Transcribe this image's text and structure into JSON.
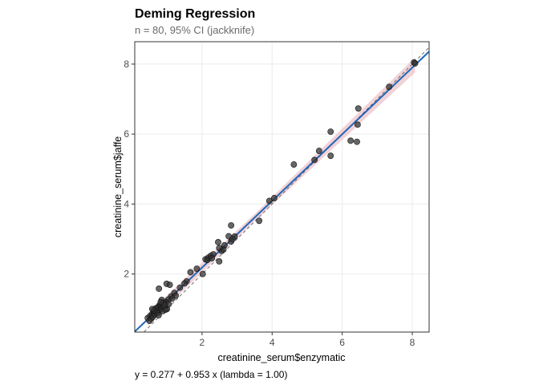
{
  "chart_data": {
    "type": "scatter",
    "title": "Deming Regression",
    "subtitle": "n = 80, 95% CI (jackknife)",
    "xlabel": "creatinine_serum$enzymatic",
    "ylabel": "creatinine_serum$jaffe",
    "caption": "y = 0.277 + 0.953 x  (lambda = 1.00)",
    "xlim": [
      0.08,
      8.48
    ],
    "ylim": [
      0.34,
      8.64
    ],
    "xticks": [
      2,
      4,
      6,
      8
    ],
    "yticks": [
      2,
      4,
      6,
      8
    ],
    "grid": true,
    "regression": {
      "intercept": 0.277,
      "slope": 0.953,
      "color": "#1f66b8"
    },
    "ci_band_color": "#e8b4bc",
    "identity_line": {
      "style": "dashed",
      "color": "#555555"
    },
    "point_color": "#333333",
    "points": [
      [
        8.05,
        8.05
      ],
      [
        8.08,
        8.02
      ],
      [
        7.34,
        7.35
      ],
      [
        6.46,
        6.73
      ],
      [
        6.44,
        6.27
      ],
      [
        6.24,
        5.81
      ],
      [
        6.42,
        5.78
      ],
      [
        5.67,
        6.07
      ],
      [
        5.67,
        5.38
      ],
      [
        5.34,
        5.52
      ],
      [
        5.21,
        5.26
      ],
      [
        4.62,
        5.13
      ],
      [
        3.92,
        4.09
      ],
      [
        4.06,
        4.17
      ],
      [
        3.63,
        3.52
      ],
      [
        2.83,
        3.39
      ],
      [
        2.76,
        3.08
      ],
      [
        2.93,
        3.07
      ],
      [
        2.83,
        2.93
      ],
      [
        2.87,
        3.0
      ],
      [
        2.64,
        2.82
      ],
      [
        2.56,
        2.66
      ],
      [
        2.61,
        2.7
      ],
      [
        2.49,
        2.74
      ],
      [
        2.46,
        2.91
      ],
      [
        2.1,
        2.42
      ],
      [
        2.18,
        2.47
      ],
      [
        2.25,
        2.52
      ],
      [
        2.32,
        2.56
      ],
      [
        2.15,
        2.4
      ],
      [
        2.28,
        2.45
      ],
      [
        2.49,
        2.36
      ],
      [
        2.02,
        2.0
      ],
      [
        1.85,
        2.15
      ],
      [
        1.67,
        2.05
      ],
      [
        1.56,
        1.79
      ],
      [
        1.5,
        1.73
      ],
      [
        1.37,
        1.61
      ],
      [
        0.99,
        1.72
      ],
      [
        1.08,
        1.69
      ],
      [
        0.77,
        1.58
      ],
      [
        1.21,
        1.46
      ],
      [
        1.12,
        1.36
      ],
      [
        1.04,
        1.27
      ],
      [
        0.97,
        1.2
      ],
      [
        0.85,
        1.26
      ],
      [
        1.0,
        1.0
      ],
      [
        0.45,
        0.74
      ],
      [
        0.52,
        0.8
      ],
      [
        0.58,
        0.86
      ],
      [
        0.62,
        0.92
      ],
      [
        0.66,
        0.97
      ],
      [
        0.7,
        1.0
      ],
      [
        0.74,
        1.05
      ],
      [
        0.78,
        1.1
      ],
      [
        0.82,
        1.12
      ],
      [
        0.86,
        1.15
      ],
      [
        0.9,
        1.18
      ],
      [
        0.55,
        0.72
      ],
      [
        0.6,
        0.78
      ],
      [
        0.65,
        0.84
      ],
      [
        0.7,
        0.9
      ],
      [
        0.75,
        0.95
      ],
      [
        0.8,
        0.98
      ],
      [
        0.85,
        1.02
      ],
      [
        0.9,
        1.06
      ],
      [
        0.95,
        1.1
      ],
      [
        0.68,
        1.02
      ],
      [
        0.72,
        0.88
      ],
      [
        0.62,
        0.96
      ],
      [
        0.88,
        0.94
      ],
      [
        0.93,
        1.12
      ],
      [
        1.05,
        1.14
      ],
      [
        1.15,
        1.3
      ],
      [
        1.25,
        1.38
      ],
      [
        0.5,
        0.66
      ],
      [
        0.58,
        1.0
      ],
      [
        0.76,
        0.82
      ],
      [
        0.82,
        1.2
      ],
      [
        0.96,
        0.98
      ]
    ]
  }
}
